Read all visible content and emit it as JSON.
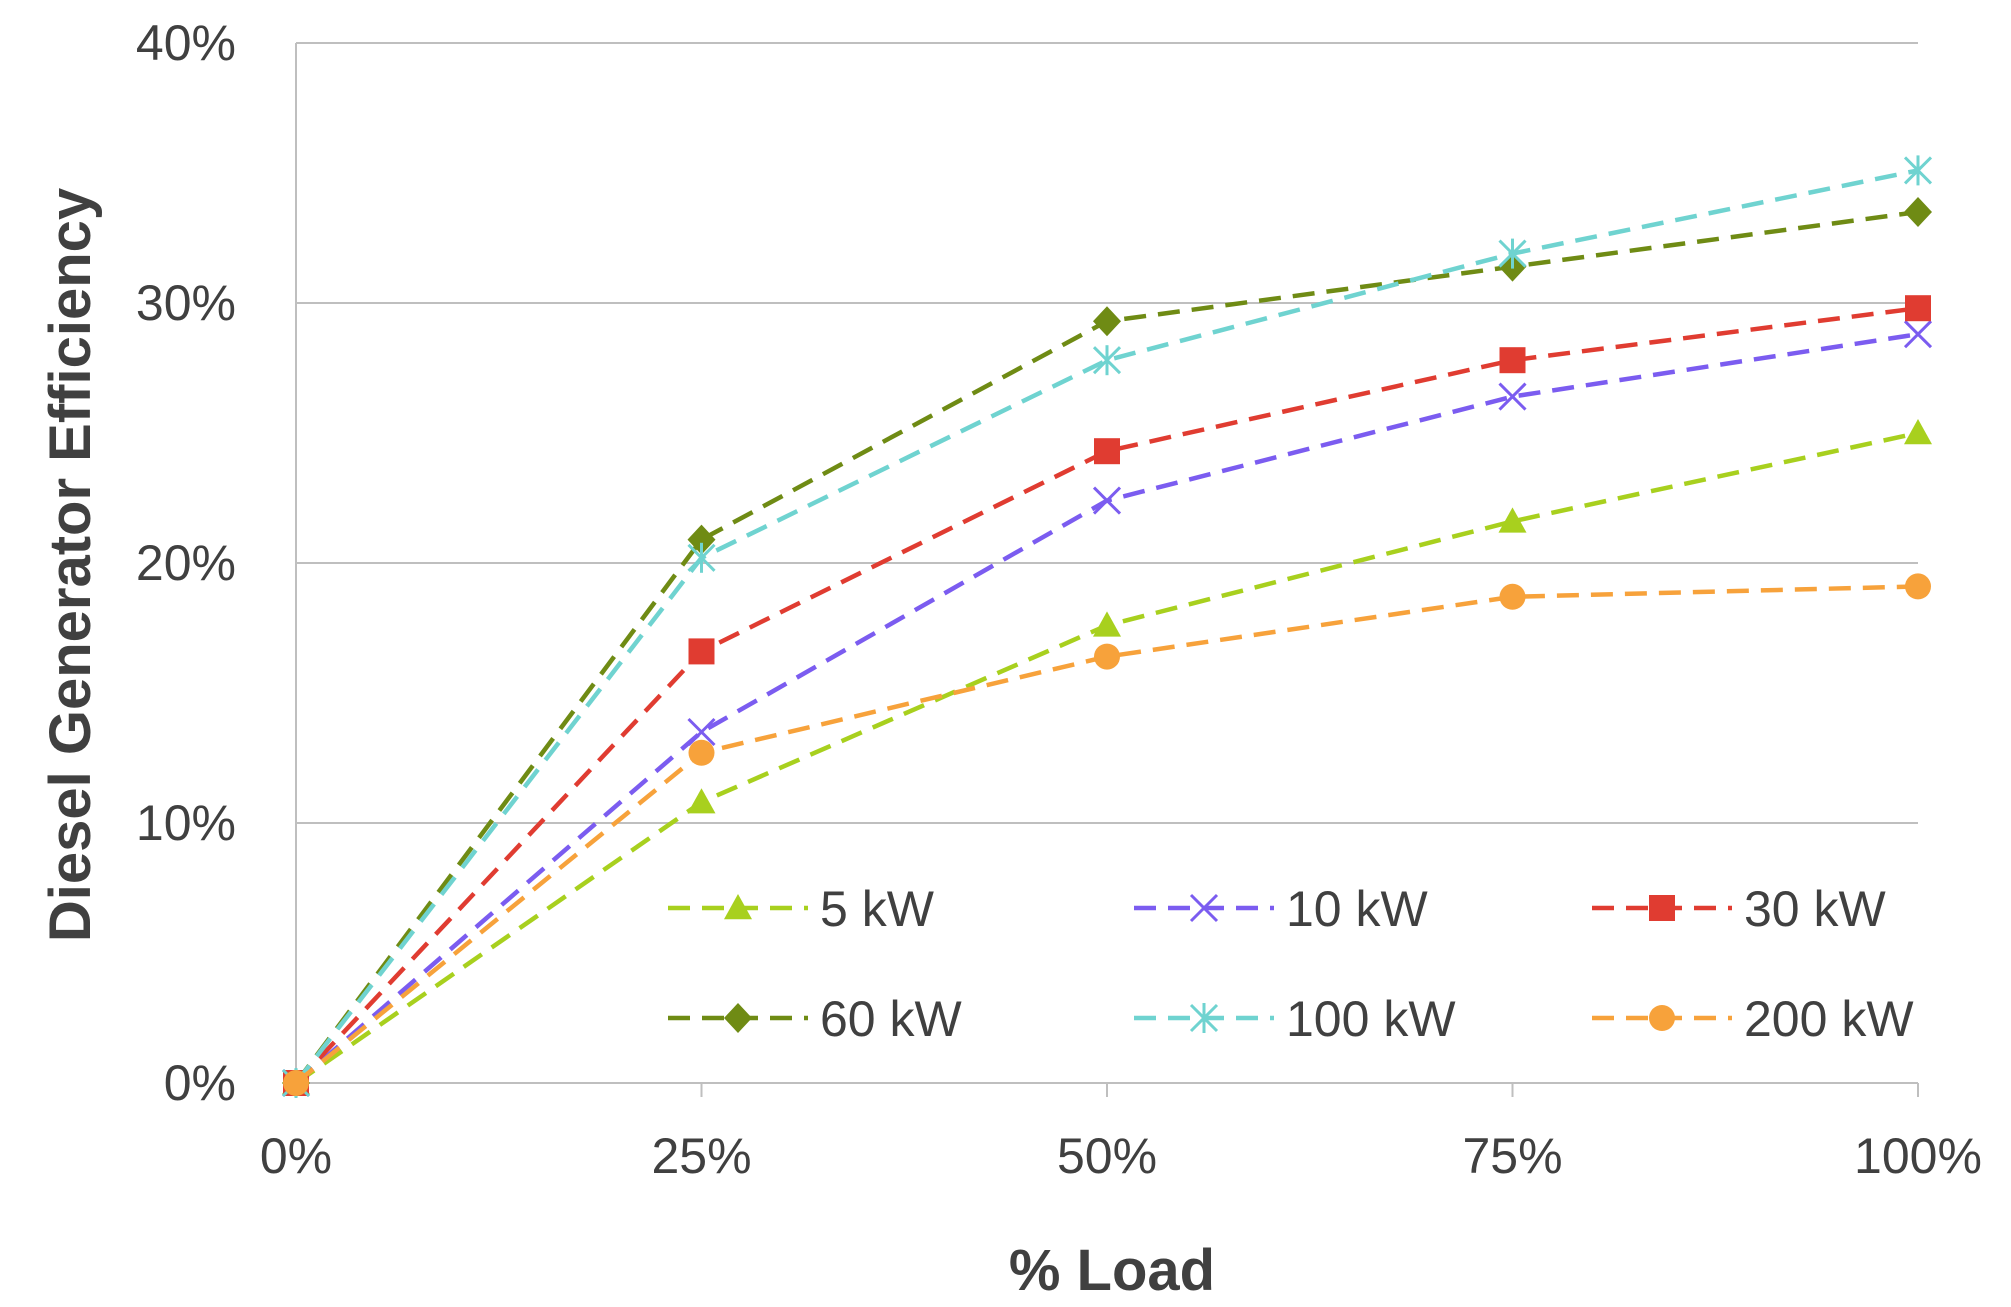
{
  "chart_data": {
    "type": "line",
    "title": "",
    "xlabel": "% Load",
    "ylabel": "Diesel Generator Efficiency",
    "x": [
      0,
      25,
      50,
      75,
      100
    ],
    "x_tick_labels": [
      "0%",
      "25%",
      "50%",
      "75%",
      "100%"
    ],
    "y_tick_values": [
      0,
      10,
      20,
      30,
      40
    ],
    "y_tick_labels": [
      "0%",
      "10%",
      "20%",
      "30%",
      "40%"
    ],
    "xlim": [
      0,
      100
    ],
    "ylim": [
      0,
      40
    ],
    "grid": "horizontal",
    "legend_position": "inside-bottom-right",
    "series": [
      {
        "name": "5 kW",
        "values": [
          0,
          10.8,
          17.6,
          21.6,
          25.0
        ],
        "color": "#a8d01e",
        "marker": "triangle"
      },
      {
        "name": "10 kW",
        "values": [
          0,
          13.5,
          22.4,
          26.4,
          28.8
        ],
        "color": "#7b5cf0",
        "marker": "x"
      },
      {
        "name": "30 kW",
        "values": [
          0,
          16.6,
          24.3,
          27.8,
          29.8
        ],
        "color": "#e03c31",
        "marker": "square"
      },
      {
        "name": "60 kW",
        "values": [
          0,
          20.9,
          29.3,
          31.4,
          33.5
        ],
        "color": "#6f8b14",
        "marker": "diamond"
      },
      {
        "name": "100 kW",
        "values": [
          0,
          20.2,
          27.8,
          31.9,
          35.1
        ],
        "color": "#6fd3d0",
        "marker": "star"
      },
      {
        "name": "200 kW",
        "values": [
          0,
          12.7,
          16.4,
          18.7,
          19.1
        ],
        "color": "#f7a23b",
        "marker": "circle"
      }
    ]
  }
}
